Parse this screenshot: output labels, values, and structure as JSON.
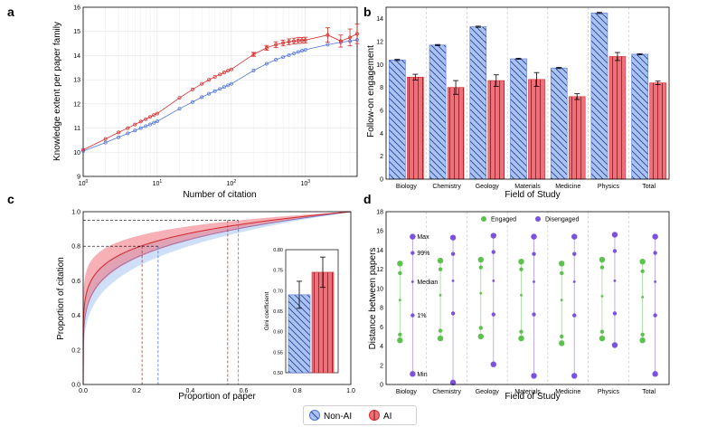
{
  "colors": {
    "blue": "#a9c4f3",
    "blue_edge": "#4f74d9",
    "red": "#ef6f7a",
    "red_edge": "#d42a2a",
    "green": "#5cc24d",
    "purple": "#7b52e0"
  },
  "legend": {
    "non_ai": "Non-AI",
    "ai": "AI"
  },
  "panels": {
    "a": "a",
    "b": "b",
    "c": "c",
    "d": "d"
  },
  "chart_data": [
    {
      "id": "a",
      "type": "line",
      "xlabel": "Number of citation",
      "ylabel": "Knowledge extent per paper family",
      "xscale": "log",
      "xlim": [
        1,
        5000
      ],
      "ylim": [
        9,
        16
      ],
      "xticks": [
        "10^0",
        "10^1",
        "10^2",
        "10^3"
      ],
      "yticks": [
        9,
        10,
        11,
        12,
        13,
        14,
        15,
        16
      ],
      "series": [
        {
          "name": "Non-AI",
          "x": [
            1,
            2,
            3,
            4,
            5,
            6,
            7,
            8,
            9,
            10,
            20,
            30,
            40,
            50,
            60,
            70,
            80,
            90,
            100,
            200,
            300,
            400,
            500,
            600,
            700,
            800,
            900,
            1000,
            2000,
            3000,
            4000,
            5000
          ],
          "y": [
            10.05,
            10.4,
            10.62,
            10.78,
            10.9,
            11.0,
            11.08,
            11.15,
            11.22,
            11.28,
            11.8,
            12.08,
            12.28,
            12.42,
            12.53,
            12.62,
            12.7,
            12.77,
            12.83,
            13.38,
            13.66,
            13.83,
            13.94,
            14.02,
            14.09,
            14.15,
            14.2,
            14.24,
            14.45,
            14.55,
            14.6,
            14.65
          ]
        },
        {
          "name": "AI",
          "x": [
            1,
            2,
            3,
            4,
            5,
            6,
            7,
            8,
            9,
            10,
            20,
            30,
            40,
            50,
            60,
            70,
            80,
            90,
            100,
            200,
            300,
            400,
            500,
            600,
            700,
            800,
            900,
            1000,
            2000,
            3000,
            4000,
            5000
          ],
          "y": [
            10.1,
            10.55,
            10.82,
            11.0,
            11.15,
            11.27,
            11.37,
            11.46,
            11.54,
            11.6,
            12.25,
            12.6,
            12.83,
            13.0,
            13.12,
            13.22,
            13.3,
            13.37,
            13.43,
            14.05,
            14.32,
            14.45,
            14.52,
            14.57,
            14.6,
            14.62,
            14.63,
            14.64,
            14.85,
            14.6,
            14.75,
            14.9
          ],
          "errors": [
            0,
            0,
            0,
            0,
            0,
            0,
            0,
            0,
            0,
            0,
            0,
            0,
            0,
            0,
            0,
            0,
            0,
            0,
            0,
            0.08,
            0.1,
            0.12,
            0.12,
            0.12,
            0.12,
            0.12,
            0.12,
            0.12,
            0.3,
            0.25,
            0.35,
            0.4
          ]
        }
      ]
    },
    {
      "id": "b",
      "type": "bar",
      "xlabel": "Field of Study",
      "ylabel": "Follow-on engagement",
      "ylim": [
        0,
        15
      ],
      "yticks": [
        0,
        2,
        4,
        6,
        8,
        10,
        12,
        14
      ],
      "categories": [
        "Biology",
        "Chemistry",
        "Geology",
        "Materials",
        "Medicine",
        "Physics",
        "Total"
      ],
      "series": [
        {
          "name": "Non-AI",
          "values": [
            10.4,
            11.7,
            13.3,
            10.5,
            9.7,
            14.5,
            10.9
          ],
          "errors": [
            0.05,
            0.05,
            0.05,
            0.05,
            0.05,
            0.05,
            0.05
          ]
        },
        {
          "name": "AI",
          "values": [
            8.9,
            8.0,
            8.6,
            8.7,
            7.2,
            10.7,
            8.4
          ],
          "errors": [
            0.25,
            0.6,
            0.5,
            0.6,
            0.25,
            0.35,
            0.15
          ]
        }
      ]
    },
    {
      "id": "c",
      "type": "line",
      "xlabel": "Proportion of paper",
      "ylabel": "Proportion of citation",
      "xlim": [
        0,
        1
      ],
      "ylim": [
        0,
        1
      ],
      "xticks": [
        "0.0",
        "0.2",
        "0.4",
        "0.6",
        "0.8",
        "1.0"
      ],
      "yticks": [
        "0.0",
        "0.2",
        "0.4",
        "0.6",
        "0.8",
        "1.0"
      ],
      "series": [
        {
          "name": "Non-AI",
          "curve_exponent": 0.19
        },
        {
          "name": "AI",
          "curve_exponent": 0.145
        }
      ],
      "reference_lines": [
        {
          "y": 0.8,
          "x_ai": 0.22,
          "x_non_ai": 0.28
        },
        {
          "y": 0.95,
          "x_ai": 0.54,
          "x_non_ai": 0.58
        }
      ],
      "inset": {
        "type": "bar",
        "ylabel": "Gini coefficient",
        "ylim": [
          0.5,
          0.8
        ],
        "yticks": [
          "0.50",
          "0.55",
          "0.60",
          "0.65",
          "0.70",
          "0.75",
          "0.80"
        ],
        "series": [
          {
            "name": "Non-AI",
            "value": 0.69,
            "error": 0.033
          },
          {
            "name": "AI",
            "value": 0.745,
            "error": 0.037
          }
        ]
      }
    },
    {
      "id": "d",
      "type": "scatter",
      "xlabel": "Field of Study",
      "ylabel": "Distance between papers",
      "ylim": [
        0,
        18
      ],
      "yticks": [
        0,
        2,
        4,
        6,
        8,
        10,
        12,
        14,
        16,
        18
      ],
      "categories": [
        "Biology",
        "Chemistry",
        "Geology",
        "Materials",
        "Medicine",
        "Physics",
        "Total"
      ],
      "legend": {
        "engaged": "Engaged",
        "disengaged": "Disengaged"
      },
      "annotations": {
        "max": "Max",
        "p99": "99%",
        "median": "Median",
        "p1": "1%",
        "min": "Min"
      },
      "series": [
        {
          "name": "Engaged",
          "min": [
            4.6,
            4.8,
            5.0,
            4.8,
            4.3,
            4.8,
            4.6
          ],
          "p1": [
            5.2,
            5.6,
            5.9,
            5.5,
            5.0,
            5.5,
            5.2
          ],
          "median": [
            8.8,
            9.3,
            9.5,
            9.3,
            8.8,
            9.2,
            9.1
          ],
          "p99": [
            11.6,
            12.0,
            12.2,
            12.0,
            11.6,
            12.2,
            11.8
          ],
          "max": [
            12.6,
            12.9,
            13.0,
            12.8,
            12.6,
            13.0,
            12.8
          ]
        },
        {
          "name": "Disengaged",
          "min": [
            1.1,
            0.2,
            2.1,
            0.9,
            0.9,
            4.1,
            1.1
          ],
          "p1": [
            7.2,
            7.4,
            7.3,
            7.3,
            7.2,
            7.4,
            7.2
          ],
          "median": [
            10.7,
            10.8,
            10.8,
            10.7,
            10.7,
            10.8,
            10.7
          ],
          "p99": [
            13.7,
            13.6,
            13.8,
            13.6,
            13.6,
            13.9,
            13.7
          ],
          "max": [
            15.4,
            15.3,
            15.5,
            15.4,
            15.4,
            15.6,
            15.4
          ]
        }
      ]
    }
  ]
}
